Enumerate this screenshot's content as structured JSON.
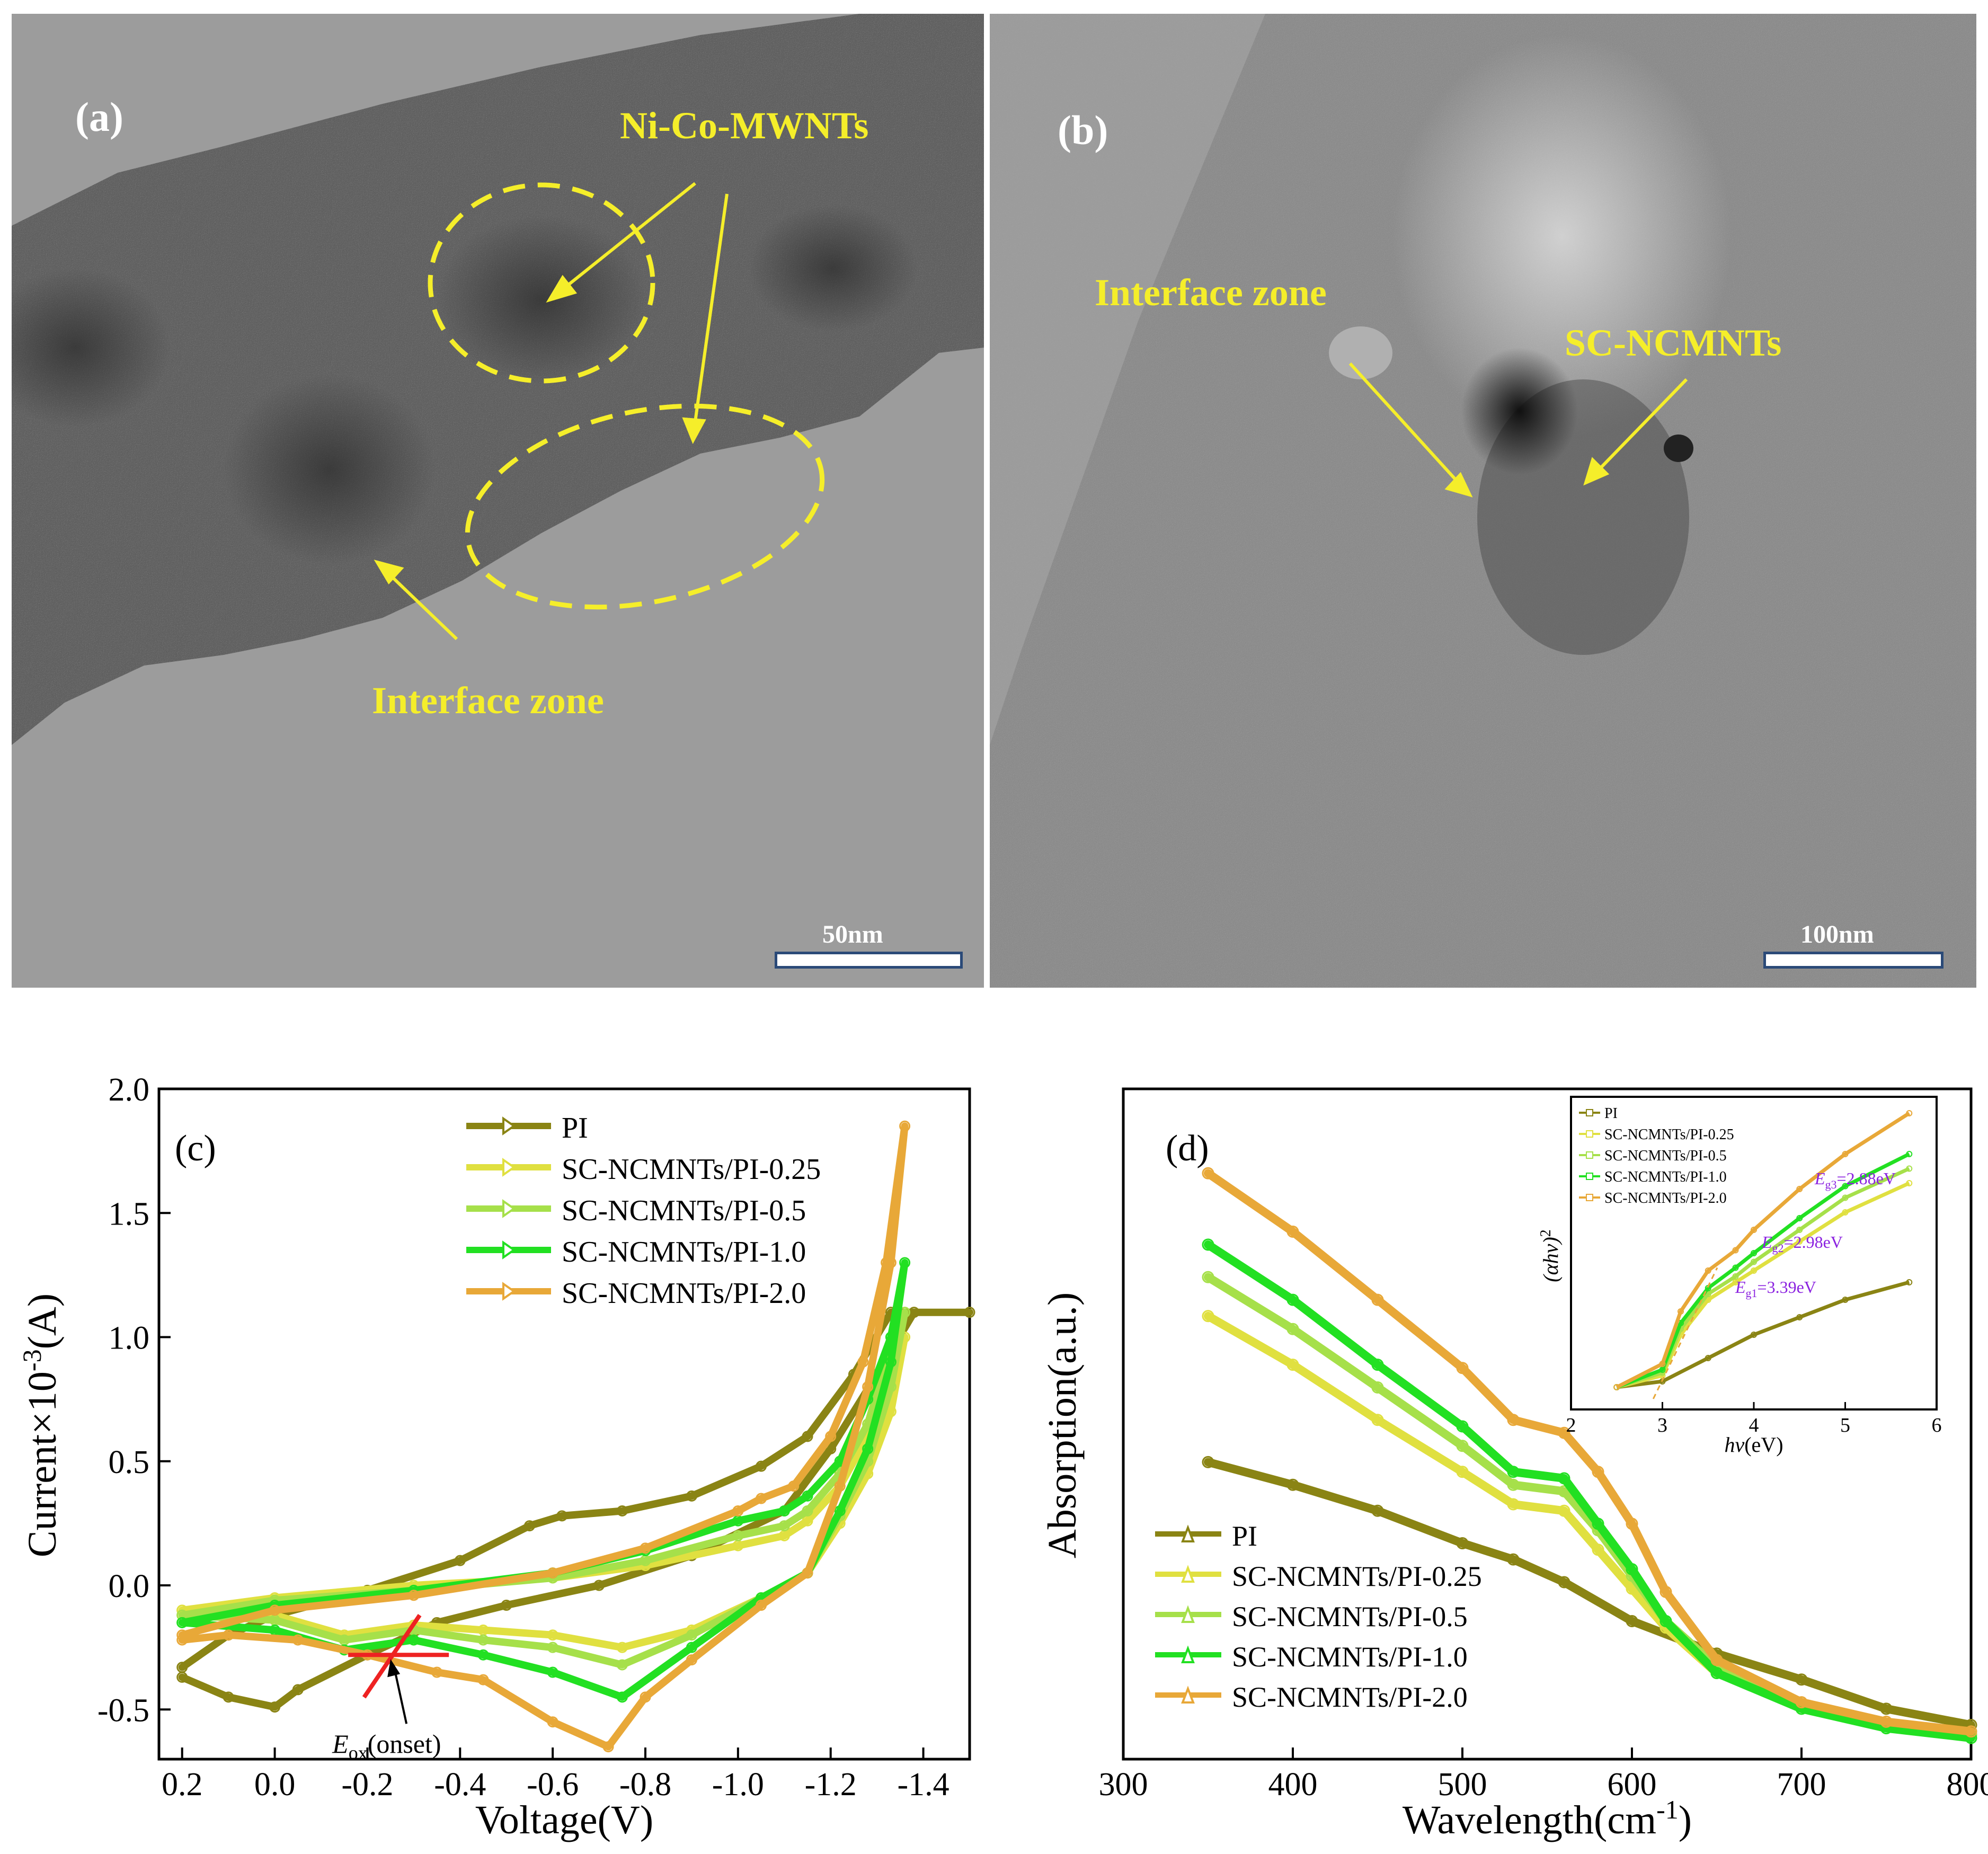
{
  "panel_a": {
    "label": "(a)",
    "annotations": {
      "particles": "Ni-Co-MWNTs",
      "interface": "Interface zone"
    },
    "scale_bar": "50nm"
  },
  "panel_b": {
    "label": "(b)",
    "annotations": {
      "interface": "Interface zone",
      "particles": "SC-NCMNTs"
    },
    "scale_bar": "100nm"
  },
  "colors": {
    "PI": "#8a8414",
    "SC-NCMNTs/PI-0.25": "#e0e040",
    "SC-NCMNTs/PI-0.5": "#a6e04a",
    "SC-NCMNTs/PI-1.0": "#22e022",
    "SC-NCMNTs/PI-2.0": "#e8a838",
    "tangent": "#ee2222",
    "bandgap_text": "#8b22e0"
  },
  "chart_data": [
    {
      "type": "line",
      "panel_label": "(c)",
      "xlabel": "Voltage(V)",
      "ylabel_prefix": "Current×10",
      "ylabel_exp": "-3",
      "ylabel_suffix": "(A)",
      "xlim": [
        0.25,
        -1.5
      ],
      "ylim": [
        -0.7,
        2.0
      ],
      "x_ticks": [
        0.2,
        0.0,
        -0.2,
        -0.4,
        -0.6,
        -0.8,
        -1.0,
        -1.2,
        -1.4
      ],
      "x_tick_labels": [
        "0.2",
        "0.0",
        "-0.2",
        "-0.4",
        "-0.6",
        "-0.8",
        "-1.0",
        "-1.2",
        "-1.4"
      ],
      "y_ticks": [
        -0.5,
        0.0,
        0.5,
        1.0,
        1.5,
        2.0
      ],
      "y_tick_labels": [
        "-0.5",
        "0.0",
        "0.5",
        "1.0",
        "1.5",
        "2.0"
      ],
      "legend": [
        "PI",
        "SC-NCMNTs/PI-0.25",
        "SC-NCMNTs/PI-0.5",
        "SC-NCMNTs/PI-1.0",
        "SC-NCMNTs/PI-2.0"
      ],
      "annotation": {
        "main": "E",
        "sub": "ox",
        "tail": "(onset)",
        "x": -0.25,
        "y": -0.28
      },
      "series": [
        {
          "name": "PI",
          "forward": [
            [
              0.2,
              -0.33
            ],
            [
              0.1,
              -0.2
            ],
            [
              0.0,
              -0.12
            ],
            [
              -0.2,
              -0.02
            ],
            [
              -0.4,
              0.1
            ],
            [
              -0.55,
              0.24
            ],
            [
              -0.62,
              0.28
            ],
            [
              -0.75,
              0.3
            ],
            [
              -0.9,
              0.36
            ],
            [
              -1.05,
              0.48
            ],
            [
              -1.15,
              0.6
            ],
            [
              -1.25,
              0.85
            ],
            [
              -1.33,
              1.1
            ],
            [
              -1.5,
              1.1
            ]
          ],
          "reverse": [
            [
              -1.5,
              1.1
            ],
            [
              -1.38,
              1.1
            ],
            [
              -1.3,
              0.85
            ],
            [
              -1.2,
              0.55
            ],
            [
              -1.1,
              0.3
            ],
            [
              -0.9,
              0.12
            ],
            [
              -0.7,
              0.0
            ],
            [
              -0.5,
              -0.08
            ],
            [
              -0.35,
              -0.15
            ],
            [
              -0.2,
              -0.28
            ],
            [
              -0.05,
              -0.42
            ],
            [
              0.0,
              -0.49
            ],
            [
              0.1,
              -0.45
            ],
            [
              0.2,
              -0.37
            ]
          ]
        },
        {
          "name": "SC-NCMNTs/PI-0.25",
          "forward": [
            [
              0.2,
              -0.1
            ],
            [
              0.0,
              -0.05
            ],
            [
              -0.3,
              0.0
            ],
            [
              -0.6,
              0.03
            ],
            [
              -0.8,
              0.08
            ],
            [
              -1.0,
              0.16
            ],
            [
              -1.1,
              0.2
            ],
            [
              -1.15,
              0.26
            ],
            [
              -1.22,
              0.4
            ],
            [
              -1.28,
              0.6
            ],
            [
              -1.32,
              0.8
            ],
            [
              -1.36,
              1.0
            ]
          ],
          "reverse": [
            [
              -1.36,
              1.0
            ],
            [
              -1.33,
              0.7
            ],
            [
              -1.28,
              0.45
            ],
            [
              -1.22,
              0.25
            ],
            [
              -1.15,
              0.05
            ],
            [
              -1.05,
              -0.05
            ],
            [
              -0.9,
              -0.18
            ],
            [
              -0.75,
              -0.25
            ],
            [
              -0.6,
              -0.2
            ],
            [
              -0.45,
              -0.18
            ],
            [
              -0.3,
              -0.16
            ],
            [
              -0.15,
              -0.2
            ],
            [
              0.0,
              -0.12
            ],
            [
              0.2,
              -0.1
            ]
          ]
        },
        {
          "name": "SC-NCMNTs/PI-0.5",
          "forward": [
            [
              0.2,
              -0.12
            ],
            [
              0.0,
              -0.06
            ],
            [
              -0.3,
              -0.02
            ],
            [
              -0.6,
              0.03
            ],
            [
              -0.8,
              0.1
            ],
            [
              -1.0,
              0.2
            ],
            [
              -1.1,
              0.24
            ],
            [
              -1.15,
              0.3
            ],
            [
              -1.22,
              0.45
            ],
            [
              -1.28,
              0.65
            ],
            [
              -1.32,
              0.9
            ],
            [
              -1.36,
              1.1
            ]
          ],
          "reverse": [
            [
              -1.36,
              1.1
            ],
            [
              -1.33,
              0.8
            ],
            [
              -1.28,
              0.5
            ],
            [
              -1.22,
              0.28
            ],
            [
              -1.15,
              0.05
            ],
            [
              -1.05,
              -0.05
            ],
            [
              -0.9,
              -0.2
            ],
            [
              -0.75,
              -0.32
            ],
            [
              -0.6,
              -0.25
            ],
            [
              -0.45,
              -0.22
            ],
            [
              -0.3,
              -0.18
            ],
            [
              -0.15,
              -0.22
            ],
            [
              0.0,
              -0.14
            ],
            [
              0.2,
              -0.12
            ]
          ]
        },
        {
          "name": "SC-NCMNTs/PI-1.0",
          "forward": [
            [
              0.2,
              -0.15
            ],
            [
              0.0,
              -0.08
            ],
            [
              -0.3,
              -0.02
            ],
            [
              -0.6,
              0.05
            ],
            [
              -0.8,
              0.14
            ],
            [
              -1.0,
              0.26
            ],
            [
              -1.1,
              0.3
            ],
            [
              -1.15,
              0.36
            ],
            [
              -1.22,
              0.5
            ],
            [
              -1.28,
              0.75
            ],
            [
              -1.33,
              1.0
            ],
            [
              -1.36,
              1.3
            ]
          ],
          "reverse": [
            [
              -1.36,
              1.3
            ],
            [
              -1.33,
              0.9
            ],
            [
              -1.28,
              0.55
            ],
            [
              -1.22,
              0.3
            ],
            [
              -1.15,
              0.05
            ],
            [
              -1.05,
              -0.05
            ],
            [
              -0.9,
              -0.25
            ],
            [
              -0.75,
              -0.45
            ],
            [
              -0.6,
              -0.35
            ],
            [
              -0.45,
              -0.28
            ],
            [
              -0.3,
              -0.22
            ],
            [
              -0.15,
              -0.26
            ],
            [
              0.0,
              -0.18
            ],
            [
              0.2,
              -0.15
            ]
          ]
        },
        {
          "name": "SC-NCMNTs/PI-2.0",
          "forward": [
            [
              0.2,
              -0.2
            ],
            [
              0.0,
              -0.1
            ],
            [
              -0.3,
              -0.04
            ],
            [
              -0.6,
              0.05
            ],
            [
              -0.8,
              0.15
            ],
            [
              -1.0,
              0.3
            ],
            [
              -1.05,
              0.35
            ],
            [
              -1.12,
              0.4
            ],
            [
              -1.2,
              0.6
            ],
            [
              -1.27,
              0.9
            ],
            [
              -1.32,
              1.3
            ],
            [
              -1.36,
              1.85
            ]
          ],
          "reverse": [
            [
              -1.36,
              1.85
            ],
            [
              -1.33,
              1.3
            ],
            [
              -1.28,
              0.8
            ],
            [
              -1.22,
              0.4
            ],
            [
              -1.15,
              0.05
            ],
            [
              -1.05,
              -0.08
            ],
            [
              -0.9,
              -0.3
            ],
            [
              -0.8,
              -0.45
            ],
            [
              -0.72,
              -0.65
            ],
            [
              -0.6,
              -0.55
            ],
            [
              -0.45,
              -0.38
            ],
            [
              -0.35,
              -0.35
            ],
            [
              -0.2,
              -0.28
            ],
            [
              -0.05,
              -0.22
            ],
            [
              0.1,
              -0.2
            ],
            [
              0.2,
              -0.22
            ]
          ]
        }
      ]
    },
    {
      "type": "line",
      "panel_label": "(d)",
      "xlabel_prefix": "Wavelength(cm",
      "xlabel_exp": "-1",
      "xlabel_suffix": ")",
      "ylabel": "Absorption(a.u.)",
      "xlim": [
        300,
        800
      ],
      "ylim": [
        0.0,
        2.0
      ],
      "x_ticks": [
        300,
        400,
        500,
        600,
        700,
        800
      ],
      "x_tick_labels": [
        "300",
        "400",
        "500",
        "600",
        "700",
        "800"
      ],
      "legend": [
        "PI",
        "SC-NCMNTs/PI-0.25",
        "SC-NCMNTs/PI-0.5",
        "SC-NCMNTs/PI-1.0",
        "SC-NCMNTs/PI-2.0"
      ],
      "series": [
        {
          "name": "PI",
          "x": [
            350,
            400,
            450,
            500,
            530,
            560,
            600,
            650,
            700,
            750,
            800
          ],
          "y": [
            0.85,
            0.78,
            0.7,
            0.6,
            0.55,
            0.48,
            0.36,
            0.26,
            0.18,
            0.09,
            0.04
          ]
        },
        {
          "name": "SC-NCMNTs/PI-0.25",
          "x": [
            350,
            400,
            450,
            500,
            530,
            560,
            580,
            600,
            620,
            650,
            700,
            750,
            800
          ],
          "y": [
            1.3,
            1.15,
            0.98,
            0.82,
            0.72,
            0.7,
            0.58,
            0.46,
            0.34,
            0.2,
            0.1,
            0.04,
            0.01
          ]
        },
        {
          "name": "SC-NCMNTs/PI-0.5",
          "x": [
            350,
            400,
            450,
            500,
            530,
            560,
            580,
            600,
            620,
            650,
            700,
            750,
            800
          ],
          "y": [
            1.42,
            1.26,
            1.08,
            0.9,
            0.78,
            0.76,
            0.64,
            0.5,
            0.36,
            0.22,
            0.1,
            0.04,
            0.01
          ]
        },
        {
          "name": "SC-NCMNTs/PI-1.0",
          "x": [
            350,
            400,
            450,
            500,
            530,
            560,
            580,
            600,
            620,
            650,
            700,
            750,
            800
          ],
          "y": [
            1.52,
            1.35,
            1.15,
            0.96,
            0.82,
            0.8,
            0.66,
            0.52,
            0.36,
            0.2,
            0.09,
            0.03,
            0.0
          ]
        },
        {
          "name": "SC-NCMNTs/PI-2.0",
          "x": [
            350,
            400,
            450,
            500,
            530,
            560,
            580,
            600,
            620,
            650,
            700,
            750,
            800
          ],
          "y": [
            1.74,
            1.56,
            1.35,
            1.14,
            0.98,
            0.94,
            0.82,
            0.66,
            0.45,
            0.24,
            0.11,
            0.05,
            0.02
          ]
        }
      ],
      "inset": {
        "type": "line",
        "xlabel_h": "hν",
        "xlabel_rest": "(eV)",
        "ylabel": "(αhν)",
        "ylabel_exp": "2",
        "xlim": [
          2,
          6
        ],
        "ylim": [
          0,
          1
        ],
        "x_ticks": [
          2,
          3,
          4,
          5,
          6
        ],
        "x_tick_labels": [
          "2",
          "3",
          "4",
          "5",
          "6"
        ],
        "legend": [
          "PI",
          "SC-NCMNTs/PI-0.25",
          "SC-NCMNTs/PI-0.5",
          "SC-NCMNTs/PI-1.0",
          "SC-NCMNTs/PI-2.0"
        ],
        "bandgaps": [
          {
            "main": "E",
            "sub": "g3",
            "value": "=2.88eV"
          },
          {
            "main": "E",
            "sub": "g2",
            "value": "=2.98eV"
          },
          {
            "main": "E",
            "sub": "g1",
            "value": "=3.39eV"
          }
        ],
        "series": [
          {
            "name": "PI",
            "x": [
              2.5,
              3.0,
              3.5,
              4.0,
              4.5,
              5.0,
              5.7
            ],
            "y": [
              0.04,
              0.06,
              0.14,
              0.22,
              0.28,
              0.34,
              0.4
            ]
          },
          {
            "name": "SC-NCMNTs/PI-0.25",
            "x": [
              2.5,
              3.0,
              3.2,
              3.5,
              3.8,
              4.0,
              4.5,
              5.0,
              5.7
            ],
            "y": [
              0.04,
              0.08,
              0.22,
              0.34,
              0.4,
              0.44,
              0.54,
              0.64,
              0.74
            ]
          },
          {
            "name": "SC-NCMNTs/PI-0.5",
            "x": [
              2.5,
              3.0,
              3.2,
              3.5,
              3.8,
              4.0,
              4.5,
              5.0,
              5.7
            ],
            "y": [
              0.04,
              0.09,
              0.24,
              0.36,
              0.42,
              0.47,
              0.58,
              0.69,
              0.79
            ]
          },
          {
            "name": "SC-NCMNTs/PI-1.0",
            "x": [
              2.5,
              3.0,
              3.2,
              3.5,
              3.8,
              4.0,
              4.5,
              5.0,
              5.7
            ],
            "y": [
              0.04,
              0.1,
              0.26,
              0.38,
              0.45,
              0.5,
              0.62,
              0.73,
              0.84
            ]
          },
          {
            "name": "SC-NCMNTs/PI-2.0",
            "x": [
              2.5,
              3.0,
              3.2,
              3.5,
              3.8,
              4.0,
              4.5,
              5.0,
              5.7
            ],
            "y": [
              0.04,
              0.12,
              0.3,
              0.44,
              0.51,
              0.58,
              0.72,
              0.84,
              0.98
            ]
          }
        ]
      }
    }
  ]
}
